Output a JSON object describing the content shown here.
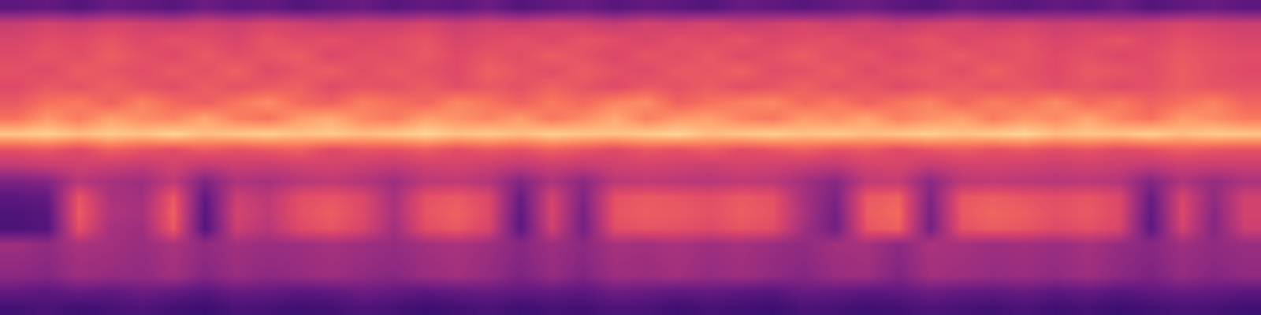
{
  "chart_data": {
    "type": "heatmap",
    "color": "magma",
    "zlim": [
      0,
      100
    ],
    "tick_labels": false,
    "cells": [
      [
        22,
        24,
        21,
        23,
        25,
        22,
        20,
        24,
        23,
        21,
        22,
        25,
        23,
        20,
        22,
        24,
        21,
        23,
        22,
        25,
        24,
        21,
        23,
        22,
        20,
        24,
        23,
        21,
        22,
        25,
        23,
        22,
        24,
        21,
        23,
        20,
        22,
        24,
        23,
        21
      ],
      [
        30,
        28,
        31,
        29,
        32,
        30,
        27,
        31,
        30,
        28,
        29,
        32,
        30,
        28,
        30,
        31,
        29,
        30,
        28,
        32,
        31,
        29,
        30,
        28,
        27,
        31,
        30,
        28,
        29,
        32,
        30,
        29,
        31,
        28,
        30,
        27,
        29,
        31,
        30,
        28
      ],
      [
        40,
        38,
        44,
        42,
        41,
        45,
        38,
        43,
        40,
        42,
        44,
        41,
        39,
        43,
        45,
        42,
        36,
        42,
        37,
        44,
        43,
        45,
        42,
        44,
        41,
        38,
        43,
        44,
        37,
        45,
        44,
        42,
        43,
        41,
        44,
        40,
        36,
        42,
        38,
        41
      ],
      [
        42,
        40,
        45,
        44,
        42,
        46,
        40,
        44,
        42,
        43,
        45,
        43,
        41,
        44,
        46,
        43,
        38,
        43,
        39,
        45,
        44,
        46,
        43,
        45,
        42,
        40,
        44,
        45,
        39,
        46,
        45,
        43,
        44,
        42,
        45,
        41,
        38,
        43,
        40,
        42
      ],
      [
        44,
        41,
        47,
        45,
        43,
        47,
        41,
        45,
        43,
        44,
        46,
        44,
        42,
        45,
        47,
        44,
        39,
        44,
        40,
        46,
        45,
        47,
        44,
        46,
        43,
        41,
        45,
        46,
        40,
        47,
        46,
        44,
        45,
        43,
        46,
        42,
        39,
        44,
        41,
        43
      ],
      [
        24,
        26,
        62,
        46,
        44,
        64,
        26,
        55,
        50,
        60,
        63,
        58,
        45,
        61,
        64,
        58,
        28,
        56,
        34,
        61,
        63,
        62,
        60,
        63,
        61,
        45,
        33,
        63,
        66,
        34,
        62,
        65,
        63,
        60,
        62,
        58,
        28,
        57,
        38,
        55
      ],
      [
        25,
        27,
        65,
        48,
        46,
        66,
        27,
        57,
        52,
        62,
        65,
        60,
        47,
        63,
        66,
        60,
        29,
        58,
        35,
        63,
        65,
        64,
        62,
        65,
        63,
        47,
        34,
        65,
        68,
        35,
        64,
        67,
        65,
        62,
        64,
        60,
        29,
        59,
        39,
        57
      ],
      [
        28,
        30,
        63,
        47,
        45,
        64,
        29,
        55,
        51,
        61,
        63,
        59,
        46,
        62,
        64,
        59,
        31,
        57,
        37,
        62,
        64,
        63,
        61,
        64,
        62,
        46,
        36,
        64,
        66,
        37,
        63,
        65,
        63,
        61,
        63,
        59,
        31,
        58,
        41,
        56
      ],
      [
        36,
        38,
        50,
        46,
        44,
        52,
        37,
        48,
        46,
        50,
        52,
        49,
        44,
        51,
        52,
        49,
        38,
        48,
        40,
        51,
        52,
        51,
        50,
        52,
        51,
        45,
        39,
        52,
        53,
        40,
        51,
        52,
        51,
        50,
        51,
        49,
        38,
        48,
        42,
        47
      ],
      [
        52,
        54,
        56,
        55,
        53,
        57,
        52,
        55,
        54,
        56,
        57,
        55,
        53,
        56,
        57,
        55,
        52,
        55,
        53,
        56,
        57,
        56,
        55,
        57,
        56,
        54,
        52,
        57,
        58,
        53,
        56,
        57,
        56,
        55,
        56,
        55,
        52,
        55,
        54,
        55
      ],
      [
        62,
        64,
        60,
        66,
        63,
        61,
        65,
        62,
        64,
        66,
        60,
        63,
        62,
        65,
        61,
        64,
        62,
        66,
        63,
        60,
        64,
        62,
        65,
        61,
        63,
        66,
        62,
        64,
        60,
        63,
        65,
        62,
        64,
        61,
        63,
        60,
        62,
        65,
        63,
        62
      ],
      [
        88,
        90,
        86,
        89,
        87,
        91,
        86,
        88,
        90,
        87,
        89,
        86,
        88,
        91,
        87,
        89,
        86,
        90,
        88,
        87,
        89,
        91,
        86,
        88,
        90,
        87,
        89,
        86,
        88,
        90,
        87,
        89,
        91,
        86,
        88,
        87,
        90,
        86,
        89,
        88
      ],
      [
        70,
        78,
        72,
        80,
        76,
        74,
        81,
        73,
        70,
        79,
        82,
        75,
        72,
        80,
        77,
        74,
        79,
        71,
        76,
        82,
        73,
        78,
        80,
        74,
        71,
        79,
        76,
        81,
        73,
        77,
        80,
        72,
        78,
        75,
        81,
        74,
        70,
        79,
        76,
        72
      ],
      [
        64,
        70,
        72,
        66,
        74,
        68,
        65,
        71,
        76,
        68,
        66,
        73,
        70,
        67,
        75,
        71,
        66,
        72,
        68,
        74,
        76,
        66,
        70,
        73,
        75,
        68,
        72,
        66,
        71,
        74,
        67,
        73,
        70,
        76,
        68,
        72,
        66,
        70,
        74,
        67
      ],
      [
        60,
        64,
        62,
        66,
        63,
        61,
        65,
        62,
        64,
        66,
        60,
        63,
        62,
        65,
        61,
        64,
        62,
        66,
        63,
        60,
        64,
        62,
        65,
        61,
        63,
        66,
        62,
        64,
        60,
        63,
        65,
        62,
        64,
        61,
        63,
        60,
        62,
        65,
        63,
        62
      ],
      [
        62,
        60,
        65,
        63,
        61,
        64,
        62,
        66,
        60,
        63,
        65,
        61,
        64,
        62,
        60,
        66,
        63,
        61,
        65,
        62,
        60,
        64,
        63,
        66,
        61,
        62,
        65,
        60,
        63,
        64,
        61,
        66,
        62,
        60,
        64,
        63,
        61,
        65,
        62,
        60
      ],
      [
        60,
        63,
        61,
        65,
        62,
        60,
        64,
        61,
        63,
        65,
        59,
        62,
        61,
        64,
        60,
        63,
        61,
        65,
        62,
        59,
        63,
        61,
        64,
        60,
        62,
        65,
        61,
        63,
        59,
        62,
        64,
        61,
        63,
        60,
        62,
        59,
        61,
        64,
        62,
        61
      ],
      [
        58,
        61,
        60,
        63,
        59,
        62,
        61,
        58,
        63,
        60,
        62,
        59,
        61,
        63,
        58,
        60,
        62,
        59,
        63,
        61,
        58,
        62,
        60,
        63,
        59,
        61,
        62,
        58,
        60,
        63,
        59,
        61,
        62,
        58,
        60,
        63,
        59,
        62,
        60,
        58
      ],
      [
        54,
        57,
        55,
        58,
        56,
        54,
        57,
        55,
        58,
        56,
        53,
        56,
        55,
        58,
        54,
        57,
        55,
        58,
        56,
        53,
        57,
        55,
        58,
        54,
        56,
        58,
        55,
        57,
        53,
        56,
        58,
        55,
        57,
        54,
        56,
        53,
        55,
        58,
        56,
        55
      ],
      [
        28,
        30,
        26,
        31,
        29,
        27,
        32,
        28,
        30,
        26,
        29,
        31,
        27,
        30,
        28,
        32,
        26,
        29,
        31,
        27,
        30,
        28,
        26,
        31,
        29,
        27,
        30,
        32,
        28,
        26,
        31,
        29,
        27,
        30,
        28,
        32,
        26,
        29,
        31,
        28
      ]
    ]
  }
}
